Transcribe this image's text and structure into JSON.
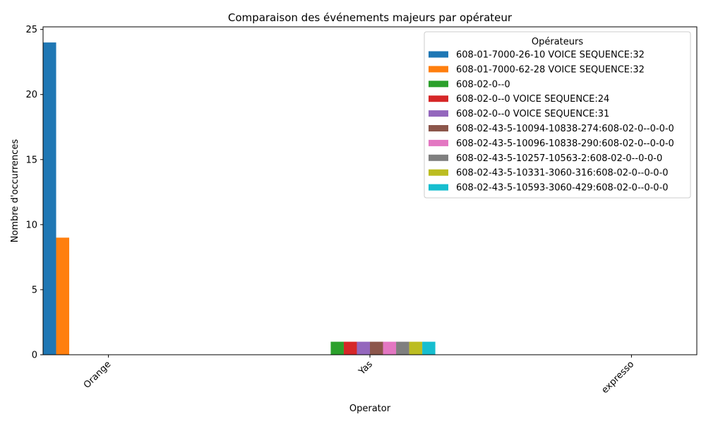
{
  "chart_data": {
    "type": "bar",
    "title": "Comparaison des événements majeurs par opérateur",
    "xlabel": "Operator",
    "ylabel": "Nombre d'occurrences",
    "categories": [
      "Orange",
      "Yas",
      "expresso"
    ],
    "ylim": [
      0,
      25.2
    ],
    "yticks": [
      0,
      5,
      10,
      15,
      20,
      25
    ],
    "grid": false,
    "legend": {
      "title": "Opérateurs",
      "position": "top-right"
    },
    "series": [
      {
        "name": "608-01-7000-26-10 VOICE SEQUENCE:32",
        "color": "#1f77b4",
        "values": [
          24,
          0,
          0
        ]
      },
      {
        "name": "608-01-7000-62-28 VOICE SEQUENCE:32",
        "color": "#ff7f0e",
        "values": [
          9,
          0,
          0
        ]
      },
      {
        "name": "608-02-0--0",
        "color": "#2ca02c",
        "values": [
          0,
          1,
          0
        ]
      },
      {
        "name": "608-02-0--0 VOICE SEQUENCE:24",
        "color": "#d62728",
        "values": [
          0,
          1,
          0
        ]
      },
      {
        "name": "608-02-0--0 VOICE SEQUENCE:31",
        "color": "#9467bd",
        "values": [
          0,
          1,
          0
        ]
      },
      {
        "name": "608-02-43-5-10094-10838-274:608-02-0--0-0-0",
        "color": "#8c564b",
        "values": [
          0,
          1,
          0
        ]
      },
      {
        "name": "608-02-43-5-10096-10838-290:608-02-0--0-0-0",
        "color": "#e377c2",
        "values": [
          0,
          1,
          0
        ]
      },
      {
        "name": "608-02-43-5-10257-10563-2:608-02-0--0-0-0",
        "color": "#7f7f7f",
        "values": [
          0,
          1,
          0
        ]
      },
      {
        "name": "608-02-43-5-10331-3060-316:608-02-0--0-0-0",
        "color": "#bcbd22",
        "values": [
          0,
          1,
          0
        ]
      },
      {
        "name": "608-02-43-5-10593-3060-429:608-02-0--0-0-0",
        "color": "#17becf",
        "values": [
          0,
          1,
          0
        ]
      }
    ]
  }
}
